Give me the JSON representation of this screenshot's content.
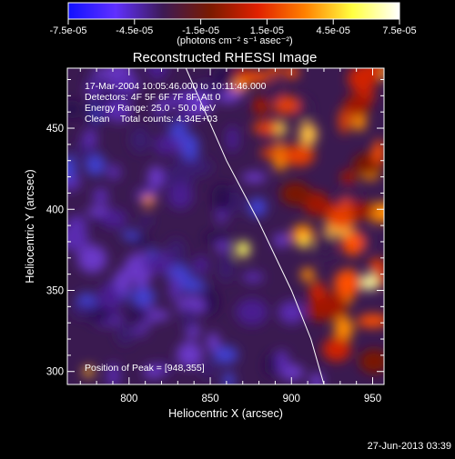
{
  "colorbar": {
    "ticks": [
      "-7.5e-05",
      "-4.5e-05",
      "-1.5e-05",
      "1.5e-05",
      "4.5e-05",
      "7.5e-05"
    ],
    "unit_label": "(photons cm⁻² s⁻¹ asec⁻²)",
    "colors": [
      "#1010ff",
      "#6030ff",
      "#3d1a55",
      "#7a1a00",
      "#e02000",
      "#ff8000",
      "#ffff40",
      "#ffffff"
    ]
  },
  "chart_data": {
    "type": "heatmap",
    "title": "Reconstructed RHESSI Image",
    "xlabel": "Heliocentric X (arcsec)",
    "ylabel": "Heliocentric Y (arcsec)",
    "xlim": [
      762,
      957
    ],
    "ylim": [
      292,
      487
    ],
    "xticks": [
      800,
      850,
      900,
      950
    ],
    "yticks": [
      300,
      350,
      400,
      450
    ],
    "info_lines": [
      "17-Mar-2004 10:05:46.000 to 10:11:46.000",
      "Detectors: 4F 5F 6F 7F 8F, Att 0",
      "Energy Range: 25.0 - 50.0 keV",
      "Clean    Total counts: 4.34E+03"
    ],
    "annotation": "Position of Peak = [948,355]",
    "peak": [
      948,
      355
    ],
    "limb_curve": [
      [
        835,
        487
      ],
      [
        860,
        430
      ],
      [
        880,
        392
      ],
      [
        900,
        350
      ],
      [
        912,
        320
      ],
      [
        920,
        292
      ]
    ]
  },
  "footer": {
    "date": "27-Jun-2013 03:39"
  }
}
